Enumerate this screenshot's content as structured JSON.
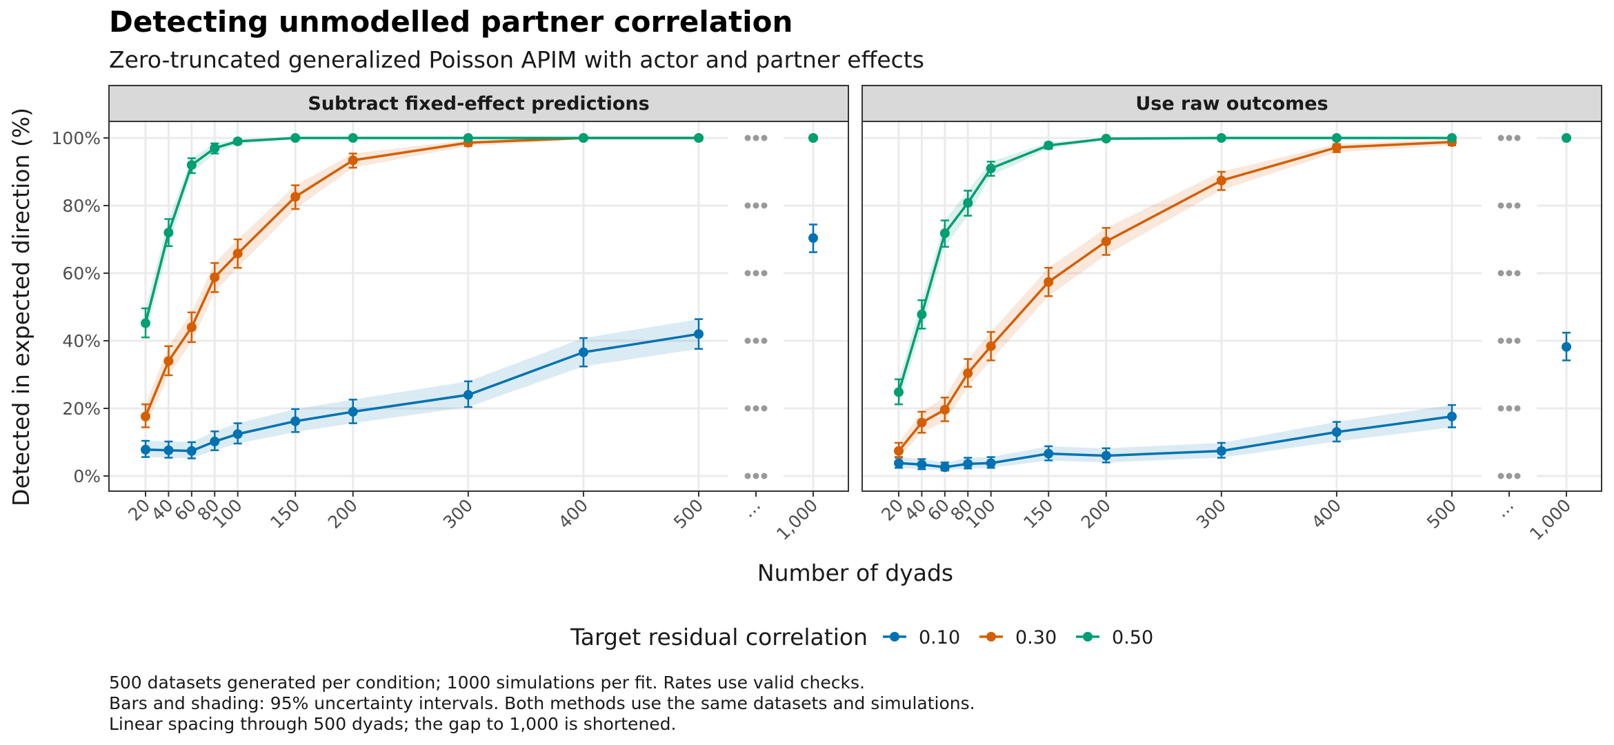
{
  "title": "Detecting unmodelled partner correlation",
  "subtitle": "Zero-truncated generalized Poisson APIM with actor and partner effects",
  "xlabel": "Number of dyads",
  "ylabel": "Detected in expected direction (%)",
  "legend_title": "Target residual correlation",
  "caption": [
    "500 datasets generated per condition; 1000 simulations per fit. Rates use valid checks.",
    "Bars and shading: 95% uncertainty intervals. Both methods use the same datasets and simulations.",
    "Linear spacing through 500 dyads; the gap to 1,000 is shortened."
  ],
  "colors": {
    "0.10": "#0072B2",
    "0.30": "#D55E00",
    "0.50": "#009E73",
    "gap_marker": "#999999"
  },
  "chart_data": {
    "type": "line",
    "x_ticks": [
      "20",
      "40",
      "60",
      "80",
      "100",
      "150",
      "200",
      "300",
      "400",
      "500",
      "…",
      "1,000"
    ],
    "y_ticks": [
      "0%",
      "20%",
      "40%",
      "60%",
      "80%",
      "100%"
    ],
    "ylim": [
      -5,
      105
    ],
    "x_scale": "linear through 500, shortened gap to 1,000",
    "grid": true,
    "legend_position": "bottom",
    "panels": [
      {
        "strip": "Subtract fixed-effect predictions",
        "series": [
          {
            "name": "0.10",
            "color": "#0072B2",
            "x": [
              20,
              40,
              60,
              80,
              100,
              150,
              200,
              300,
              400,
              500
            ],
            "y": [
              7.8,
              7.6,
              7.4,
              10.2,
              12.4,
              16.2,
              19.0,
              24.0,
              36.6,
              42.0
            ],
            "lo": [
              5.6,
              5.4,
              5.2,
              7.6,
              9.6,
              13.0,
              15.6,
              20.4,
              32.4,
              37.6
            ],
            "hi": [
              10.4,
              10.2,
              10.0,
              13.2,
              15.6,
              19.8,
              22.6,
              28.0,
              40.8,
              46.4
            ],
            "x_end": 1000,
            "y_end": 70.4,
            "lo_end": 66.2,
            "hi_end": 74.4
          },
          {
            "name": "0.30",
            "color": "#D55E00",
            "x": [
              20,
              40,
              60,
              80,
              100,
              150,
              200,
              300,
              400,
              500
            ],
            "y": [
              17.6,
              34.0,
              44.0,
              58.8,
              65.8,
              82.6,
              93.4,
              98.6,
              100.0,
              100.0
            ],
            "lo": [
              14.4,
              29.8,
              39.6,
              54.4,
              61.6,
              79.0,
              91.2,
              97.6,
              99.6,
              99.6
            ],
            "hi": [
              21.2,
              38.4,
              48.4,
              63.0,
              70.0,
              86.0,
              95.4,
              99.4,
              100.0,
              100.0
            ],
            "x_end": 1000,
            "y_end": 100.0,
            "lo_end": 99.6,
            "hi_end": 100.0
          },
          {
            "name": "0.50",
            "color": "#009E73",
            "x": [
              20,
              40,
              60,
              80,
              100,
              150,
              200,
              300,
              400,
              500
            ],
            "y": [
              45.2,
              72.0,
              92.0,
              97.0,
              99.0,
              100.0,
              100.0,
              100.0,
              100.0,
              100.0
            ],
            "lo": [
              41.0,
              68.0,
              89.6,
              95.4,
              98.2,
              99.6,
              99.6,
              99.6,
              99.6,
              99.6
            ],
            "hi": [
              49.6,
              76.0,
              94.0,
              98.4,
              99.6,
              100.0,
              100.0,
              100.0,
              100.0,
              100.0
            ],
            "x_end": 1000,
            "y_end": 100.0,
            "lo_end": 99.6,
            "hi_end": 100.0
          }
        ]
      },
      {
        "strip": "Use raw outcomes",
        "series": [
          {
            "name": "0.10",
            "color": "#0072B2",
            "x": [
              20,
              40,
              60,
              80,
              100,
              150,
              200,
              300,
              400,
              500
            ],
            "y": [
              3.8,
              3.4,
              2.6,
              3.6,
              3.8,
              6.6,
              6.0,
              7.4,
              13.0,
              17.6
            ],
            "lo": [
              2.4,
              2.0,
              1.6,
              2.2,
              2.4,
              4.6,
              4.0,
              5.4,
              10.2,
              14.4
            ],
            "hi": [
              5.6,
              5.0,
              4.0,
              5.4,
              5.6,
              8.8,
              8.2,
              9.8,
              16.0,
              21.0
            ],
            "x_end": 1000,
            "y_end": 38.2,
            "lo_end": 34.2,
            "hi_end": 42.4
          },
          {
            "name": "0.30",
            "color": "#D55E00",
            "x": [
              20,
              40,
              60,
              80,
              100,
              150,
              200,
              300,
              400,
              500
            ],
            "y": [
              7.4,
              15.8,
              19.6,
              30.4,
              38.4,
              57.4,
              69.4,
              87.4,
              97.2,
              98.8
            ],
            "lo": [
              5.4,
              12.8,
              16.2,
              26.4,
              34.2,
              53.2,
              65.4,
              84.6,
              95.8,
              97.8
            ],
            "hi": [
              9.8,
              19.0,
              23.2,
              34.6,
              42.6,
              61.6,
              73.4,
              90.0,
              98.2,
              99.6
            ],
            "x_end": 1000,
            "y_end": null,
            "lo_end": null,
            "hi_end": null
          },
          {
            "name": "0.50",
            "color": "#009E73",
            "x": [
              20,
              40,
              60,
              80,
              100,
              150,
              200,
              300,
              400,
              500
            ],
            "y": [
              24.8,
              47.8,
              71.8,
              80.8,
              91.0,
              97.8,
              99.8,
              100.0,
              100.0,
              100.0
            ],
            "lo": [
              21.2,
              43.6,
              67.8,
              77.0,
              88.8,
              96.8,
              99.4,
              99.6,
              99.6,
              99.6
            ],
            "hi": [
              28.6,
              52.0,
              75.6,
              84.4,
              93.0,
              98.6,
              100.0,
              100.0,
              100.0,
              100.0
            ],
            "x_end": 1000,
            "y_end": 100.0,
            "lo_end": 99.6,
            "hi_end": 100.0
          }
        ]
      }
    ]
  }
}
